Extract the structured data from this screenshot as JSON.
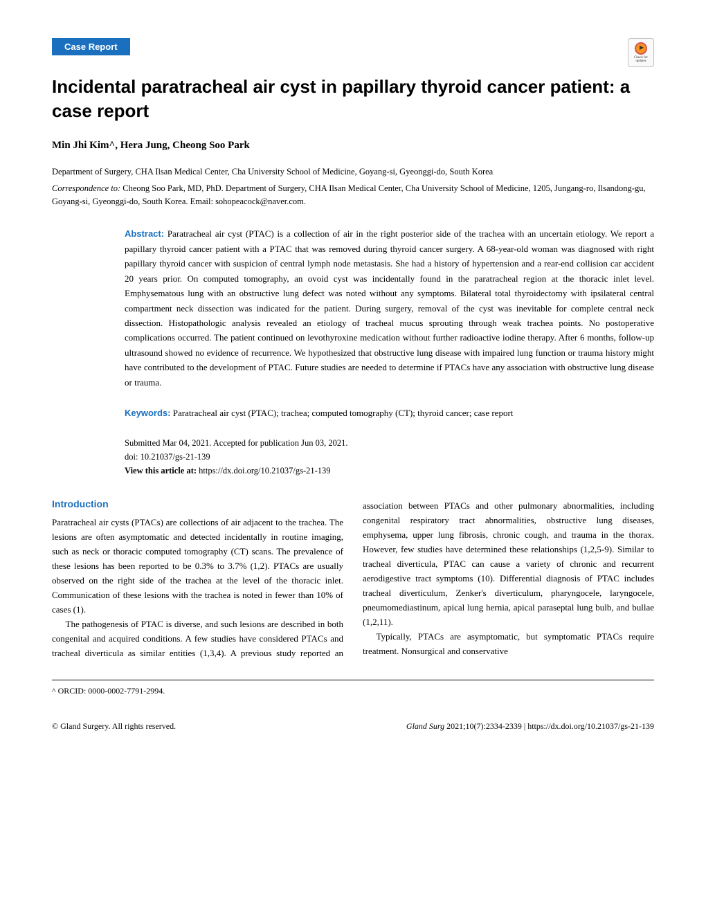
{
  "badge": {
    "check_text": "Check for updates"
  },
  "header": {
    "case_report_label": "Case Report"
  },
  "title": "Incidental paratracheal air cyst in papillary thyroid cancer patient: a case report",
  "authors": "Min Jhi Kim^, Hera Jung, Cheong Soo Park",
  "affiliation": "Department of Surgery, CHA Ilsan Medical Center, Cha University School of Medicine, Goyang-si, Gyeonggi-do, South Korea",
  "correspondence": {
    "label": "Correspondence to:",
    "text": " Cheong Soo Park, MD, PhD. Department of Surgery, CHA Ilsan Medical Center, Cha University School of Medicine, 1205, Jungang-ro, Ilsandong-gu, Goyang-si, Gyeonggi-do, South Korea. Email: sohopeacock@naver.com."
  },
  "abstract": {
    "label": "Abstract:",
    "text": " Paratracheal air cyst (PTAC) is a collection of air in the right posterior side of the trachea with an uncertain etiology. We report a papillary thyroid cancer patient with a PTAC that was removed during thyroid cancer surgery. A 68-year-old woman was diagnosed with right papillary thyroid cancer with suspicion of central lymph node metastasis. She had a history of hypertension and a rear-end collision car accident 20 years prior. On computed tomography, an ovoid cyst was incidentally found in the paratracheal region at the thoracic inlet level. Emphysematous lung with an obstructive lung defect was noted without any symptoms. Bilateral total thyroidectomy with ipsilateral central compartment neck dissection was indicated for the patient. During surgery, removal of the cyst was inevitable for complete central neck dissection. Histopathologic analysis revealed an etiology of tracheal mucus sprouting through weak trachea points. No postoperative complications occurred. The patient continued on levothyroxine medication without further radioactive iodine therapy. After 6 months, follow-up ultrasound showed no evidence of recurrence. We hypothesized that obstructive lung disease with impaired lung function or trauma history might have contributed to the development of PTAC. Future studies are needed to determine if PTACs have any association with obstructive lung disease or trauma."
  },
  "keywords": {
    "label": "Keywords:",
    "text": " Paratracheal air cyst (PTAC); trachea; computed tomography (CT); thyroid cancer; case report"
  },
  "submitted": {
    "line1": "Submitted Mar 04, 2021. Accepted for publication Jun 03, 2021.",
    "line2": "doi: 10.21037/gs-21-139",
    "view_label": "View this article at:",
    "view_url": " https://dx.doi.org/10.21037/gs-21-139"
  },
  "introduction": {
    "heading": "Introduction",
    "p1": "Paratracheal air cysts (PTACs) are collections of air adjacent to the trachea. The lesions are often asymptomatic and detected incidentally in routine imaging, such as neck or thoracic computed tomography (CT) scans. The prevalence of these lesions has been reported to be 0.3% to 3.7% (1,2). PTACs are usually observed on the right side of the trachea at the level of the thoracic inlet. Communication of these lesions with the trachea is noted in fewer than 10% of cases (1).",
    "p2": "The pathogenesis of PTAC is diverse, and such lesions are described in both congenital and acquired conditions. A few studies have considered PTACs and tracheal diverticula as similar entities (1,3,4). A previous study reported an association between PTACs and other pulmonary abnormalities, including congenital respiratory tract abnormalities, obstructive lung diseases, emphysema, upper lung fibrosis, chronic cough, and trauma in the thorax. However, few studies have determined these relationships (1,2,5-9). Similar to tracheal diverticula, PTAC can cause a variety of chronic and recurrent aerodigestive tract symptoms (10). Differential diagnosis of PTAC includes tracheal diverticulum, Zenker's diverticulum, pharyngocele, laryngocele, pneumomediastinum, apical lung hernia, apical paraseptal lung bulb, and bullae (1,2,11).",
    "p3": "Typically, PTACs are asymptomatic, but symptomatic PTACs require treatment. Nonsurgical and conservative"
  },
  "footnote": "^ ORCID: 0000-0002-7791-2994.",
  "footer": {
    "left": "© Gland Surgery. All rights reserved.",
    "journal": "Gland Surg",
    "rest": " 2021;10(7):2334-2339 | https://dx.doi.org/10.21037/gs-21-139"
  },
  "colors": {
    "brand_blue": "#1a6fbf",
    "text": "#000000",
    "background": "#ffffff"
  }
}
